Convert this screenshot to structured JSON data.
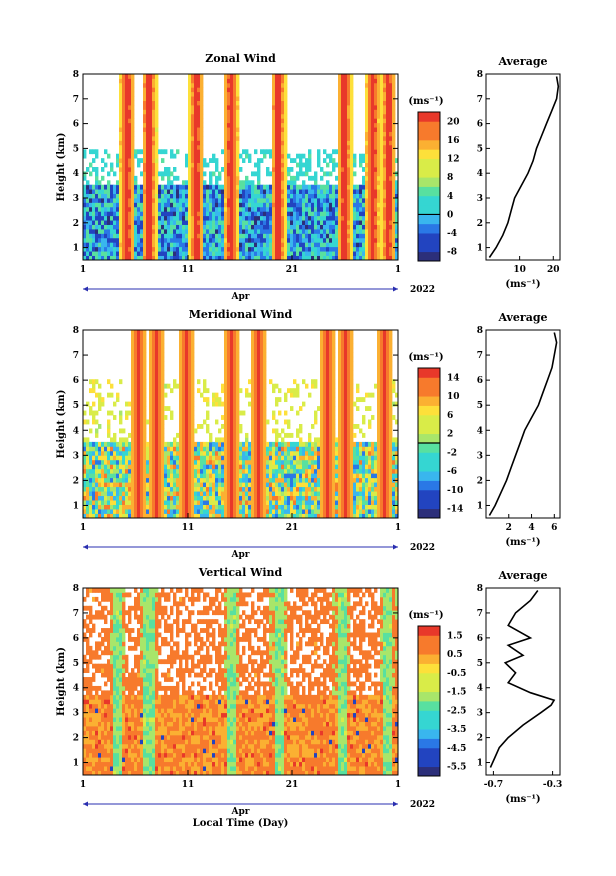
{
  "chart_data": [
    {
      "type": "heatmap",
      "title": "Zonal Wind",
      "ylabel": "Height (km)",
      "ylim": [
        0.5,
        8
      ],
      "yticks": [
        "1",
        "2",
        "3",
        "4",
        "5",
        "6",
        "7",
        "8"
      ],
      "xticks": [
        "1",
        "11",
        "21",
        "1"
      ],
      "month_label": "Apr",
      "year_label": "2022",
      "xlabel": "",
      "colorbar": {
        "units": "(ms⁻¹)",
        "labels": [
          "-8",
          "-4",
          "0",
          "4",
          "8",
          "12",
          "16",
          "20"
        ],
        "range": [
          -10,
          22
        ],
        "zero_line": 0
      },
      "profile": {
        "title": "Average",
        "xlabel": "(ms⁻¹)",
        "xticks": [
          "10",
          "20"
        ],
        "xlim": [
          0,
          22
        ],
        "heights": [
          0.6,
          1.0,
          1.5,
          2.0,
          2.5,
          3.0,
          3.5,
          4.0,
          4.5,
          5.0,
          5.5,
          6.0,
          6.5,
          7.0,
          7.5,
          7.9
        ],
        "values": [
          1.0,
          3.0,
          5.0,
          6.5,
          7.5,
          8.5,
          10.5,
          12.5,
          14.0,
          15.0,
          16.5,
          18.0,
          19.5,
          21.0,
          21.5,
          21.0
        ]
      }
    },
    {
      "type": "heatmap",
      "title": "Meridional Wind",
      "ylabel": "Height (km)",
      "ylim": [
        0.5,
        8
      ],
      "yticks": [
        "1",
        "2",
        "3",
        "4",
        "5",
        "6",
        "7",
        "8"
      ],
      "xticks": [
        "1",
        "11",
        "21",
        "1"
      ],
      "month_label": "Apr",
      "year_label": "2022",
      "xlabel": "",
      "colorbar": {
        "units": "(ms⁻¹)",
        "labels": [
          "-14",
          "-10",
          "-6",
          "-2",
          "2",
          "6",
          "10",
          "14"
        ],
        "range": [
          -16,
          16
        ],
        "zero_line": 0
      },
      "profile": {
        "title": "Average",
        "xlabel": "(ms⁻¹)",
        "xticks": [
          "2",
          "4",
          "6"
        ],
        "xlim": [
          0,
          6.5
        ],
        "heights": [
          0.6,
          1.0,
          1.5,
          2.0,
          2.5,
          3.0,
          3.5,
          4.0,
          4.5,
          5.0,
          5.5,
          6.0,
          6.5,
          7.0,
          7.5,
          7.9
        ],
        "values": [
          0.3,
          0.8,
          1.3,
          1.8,
          2.2,
          2.6,
          3.0,
          3.4,
          4.0,
          4.6,
          5.0,
          5.4,
          5.8,
          6.0,
          6.2,
          6.0
        ]
      }
    },
    {
      "type": "heatmap",
      "title": "Vertical Wind",
      "ylabel": "Height (km)",
      "ylim": [
        0.5,
        8
      ],
      "yticks": [
        "1",
        "2",
        "3",
        "4",
        "5",
        "6",
        "7",
        "8"
      ],
      "xticks": [
        "1",
        "11",
        "21",
        "1"
      ],
      "month_label": "Apr",
      "year_label": "2022",
      "xlabel": "Local Time (Day)",
      "colorbar": {
        "units": "(ms⁻¹)",
        "labels": [
          "-5.5",
          "-4.5",
          "-3.5",
          "-2.5",
          "-1.5",
          "-0.5",
          "0.5",
          "1.5"
        ],
        "range": [
          -6,
          2
        ],
        "zero_line": null
      },
      "profile": {
        "title": "Average",
        "xlabel": "(ms⁻¹)",
        "xticks": [
          "-0.7",
          "-0.3"
        ],
        "xlim": [
          -0.75,
          -0.25
        ],
        "heights": [
          0.8,
          1.2,
          1.6,
          2.0,
          2.5,
          3.0,
          3.3,
          3.5,
          3.8,
          4.2,
          4.6,
          5.0,
          5.3,
          5.7,
          6.0,
          6.5,
          7.0,
          7.5,
          7.9
        ],
        "values": [
          -0.72,
          -0.69,
          -0.66,
          -0.6,
          -0.5,
          -0.38,
          -0.31,
          -0.29,
          -0.45,
          -0.6,
          -0.55,
          -0.62,
          -0.5,
          -0.6,
          -0.45,
          -0.6,
          -0.55,
          -0.45,
          -0.4
        ]
      }
    }
  ]
}
